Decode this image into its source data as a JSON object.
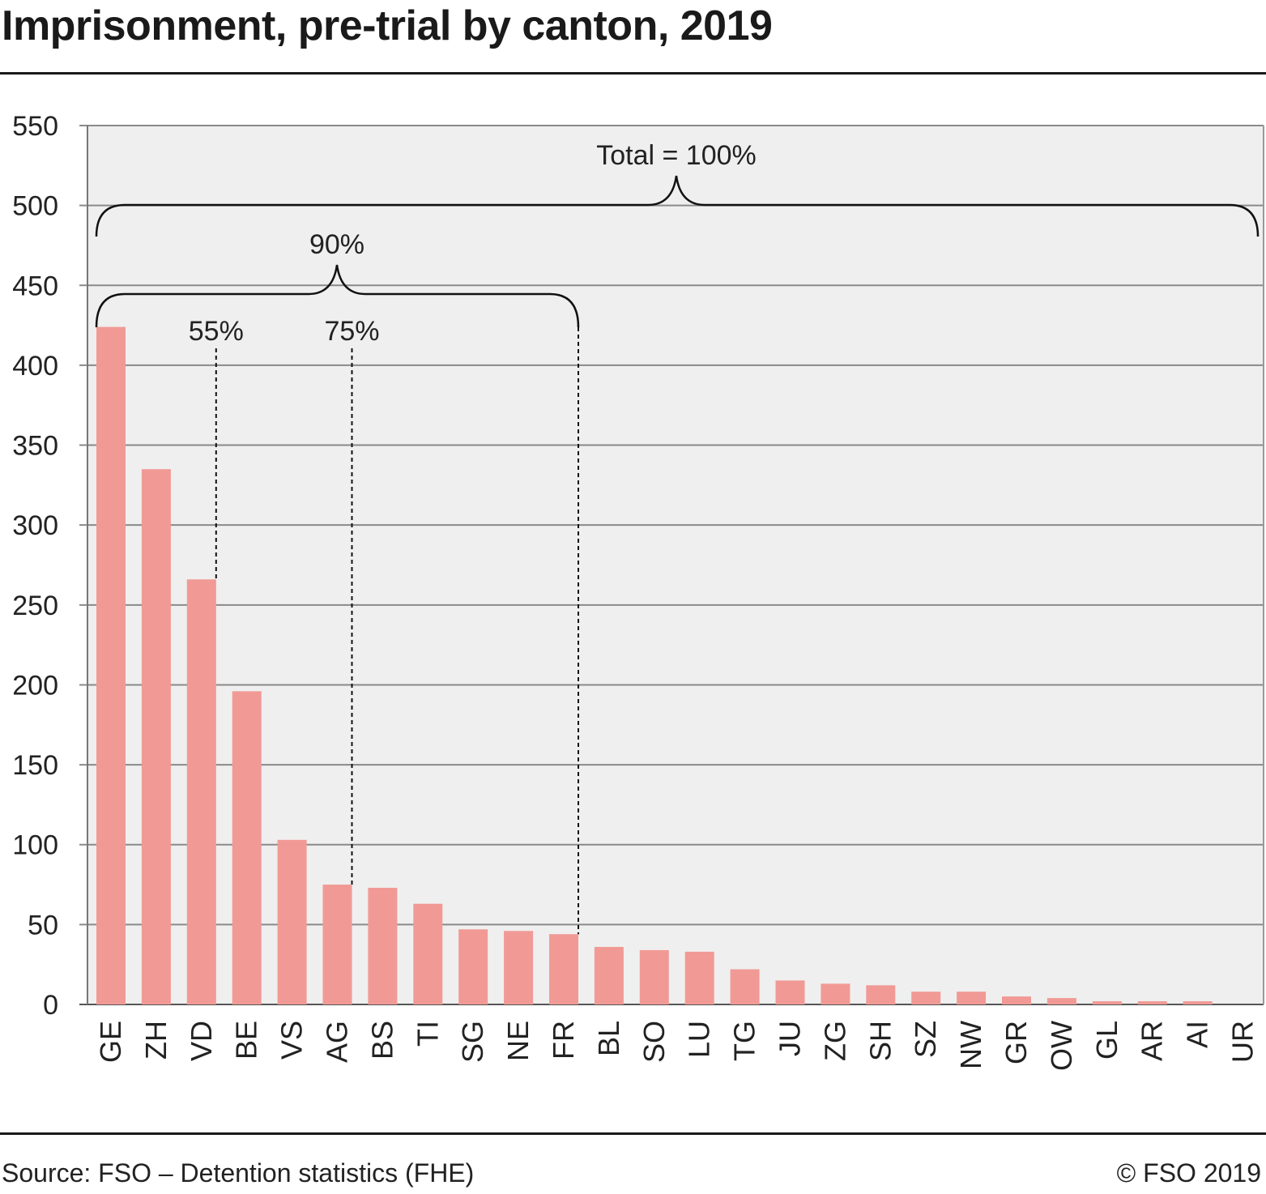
{
  "title": "Imprisonment, pre-trial by canton, 2019",
  "source": "Source: FSO – Detention statistics (FHE)",
  "copyright": "© FSO 2019",
  "colors": {
    "bar": "#f19a95",
    "plot_bg": "#efefef",
    "grid": "#8a8a8a",
    "text": "#1a1a1a"
  },
  "chart_data": {
    "type": "bar",
    "title": "Imprisonment, pre-trial by canton, 2019",
    "xlabel": "",
    "ylabel": "",
    "ylim": [
      0,
      550
    ],
    "yticks": [
      0,
      50,
      100,
      150,
      200,
      250,
      300,
      350,
      400,
      450,
      500,
      550
    ],
    "grid": true,
    "categories": [
      "GE",
      "ZH",
      "VD",
      "BE",
      "VS",
      "AG",
      "BS",
      "TI",
      "SG",
      "NE",
      "FR",
      "BL",
      "SO",
      "LU",
      "TG",
      "JU",
      "ZG",
      "SH",
      "SZ",
      "NW",
      "GR",
      "OW",
      "GL",
      "AR",
      "AI",
      "UR"
    ],
    "values": [
      424,
      335,
      266,
      196,
      103,
      75,
      73,
      63,
      47,
      46,
      44,
      36,
      34,
      33,
      22,
      15,
      13,
      12,
      8,
      8,
      5,
      4,
      2,
      2,
      2,
      0
    ],
    "annotations": [
      {
        "text": "55%",
        "after_category": "VD",
        "type": "cumulative-share"
      },
      {
        "text": "75%",
        "after_category": "AG",
        "type": "cumulative-share"
      },
      {
        "text": "90%",
        "from_category": "GE",
        "to_category": "FR",
        "type": "brace"
      },
      {
        "text": "Total = 100%",
        "from_category": "GE",
        "to_category": "UR",
        "type": "brace"
      }
    ]
  }
}
